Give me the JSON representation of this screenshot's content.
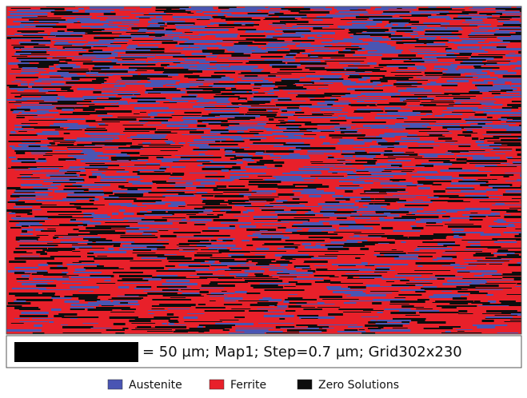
{
  "scale_bar": {
    "label": "= 50 µm; Map1; Step=0.7 µm; Grid302x230"
  },
  "legend": {
    "items": [
      {
        "name": "Austenite",
        "color": "#4a55b3"
      },
      {
        "name": "Ferrite",
        "color": "#e8202a"
      },
      {
        "name": "Zero Solutions",
        "color": "#0d0d0d"
      }
    ]
  }
}
